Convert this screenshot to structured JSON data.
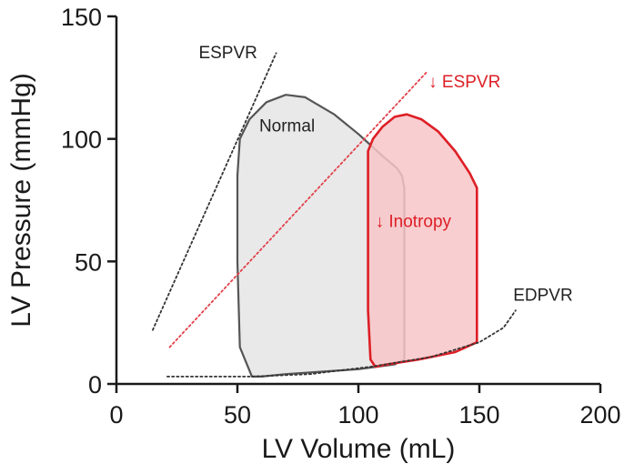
{
  "chart_data": {
    "type": "line",
    "title": "",
    "xlabel": "LV Volume (mL)",
    "ylabel": "LV Pressure (mmHg)",
    "xlim": [
      0,
      200
    ],
    "ylim": [
      0,
      150
    ],
    "x_ticks": [
      "0",
      "50",
      "100",
      "150",
      "200"
    ],
    "y_ticks": [
      "0",
      "50",
      "100",
      "150"
    ],
    "grid": false,
    "legend": "none",
    "series": [
      {
        "name": "Normal",
        "kind": "pv-loop",
        "color": "#555555",
        "fill": "#e5e5e5",
        "x": [
          56,
          51,
          50,
          50,
          51,
          55,
          62,
          70,
          78,
          90,
          100,
          110,
          116,
          118,
          119,
          119,
          115,
          100,
          85,
          70,
          60,
          56
        ],
        "y": [
          3,
          15,
          50,
          85,
          100,
          108,
          115,
          118,
          117,
          110,
          102,
          93,
          88,
          85,
          80,
          10,
          8,
          6,
          5,
          4,
          3,
          3
        ]
      },
      {
        "name": "↓ Inotropy",
        "kind": "pv-loop",
        "color": "#dd1f26",
        "fill": "#f8c6c8",
        "x": [
          105,
          104,
          104,
          104,
          106,
          110,
          115,
          120,
          126,
          133,
          140,
          146,
          149,
          149,
          140,
          125,
          112,
          107,
          105
        ],
        "y": [
          10,
          30,
          70,
          95,
          100,
          105,
          109,
          110,
          108,
          103,
          95,
          86,
          80,
          17,
          13,
          10,
          8,
          7,
          10
        ]
      },
      {
        "name": "ESPVR",
        "kind": "dotted-line",
        "color": "#333333",
        "x": [
          15,
          66
        ],
        "y": [
          22,
          135
        ]
      },
      {
        "name": "↓ ESPVR",
        "kind": "dotted-line",
        "color": "#e2404a",
        "x": [
          22,
          128
        ],
        "y": [
          15,
          127
        ]
      },
      {
        "name": "EDPVR",
        "kind": "dotted-line",
        "color": "#333333",
        "x": [
          21,
          40,
          56,
          80,
          105,
          130,
          150,
          160,
          165
        ],
        "y": [
          3,
          3,
          3,
          4,
          7,
          11,
          17,
          23,
          30
        ]
      }
    ],
    "annotations": [
      {
        "text": "ESPVR",
        "x": 34,
        "y": 133,
        "color": "#222222"
      },
      {
        "text": "↓ ESPVR",
        "x": 129,
        "y": 121,
        "color": "#dd1f26"
      },
      {
        "text": "Normal",
        "x": 59,
        "y": 103,
        "color": "#222222"
      },
      {
        "text": "↓ Inotropy",
        "x": 107,
        "y": 64,
        "color": "#dd1f26"
      },
      {
        "text": "EDPVR",
        "x": 164,
        "y": 34,
        "color": "#222222"
      }
    ]
  }
}
